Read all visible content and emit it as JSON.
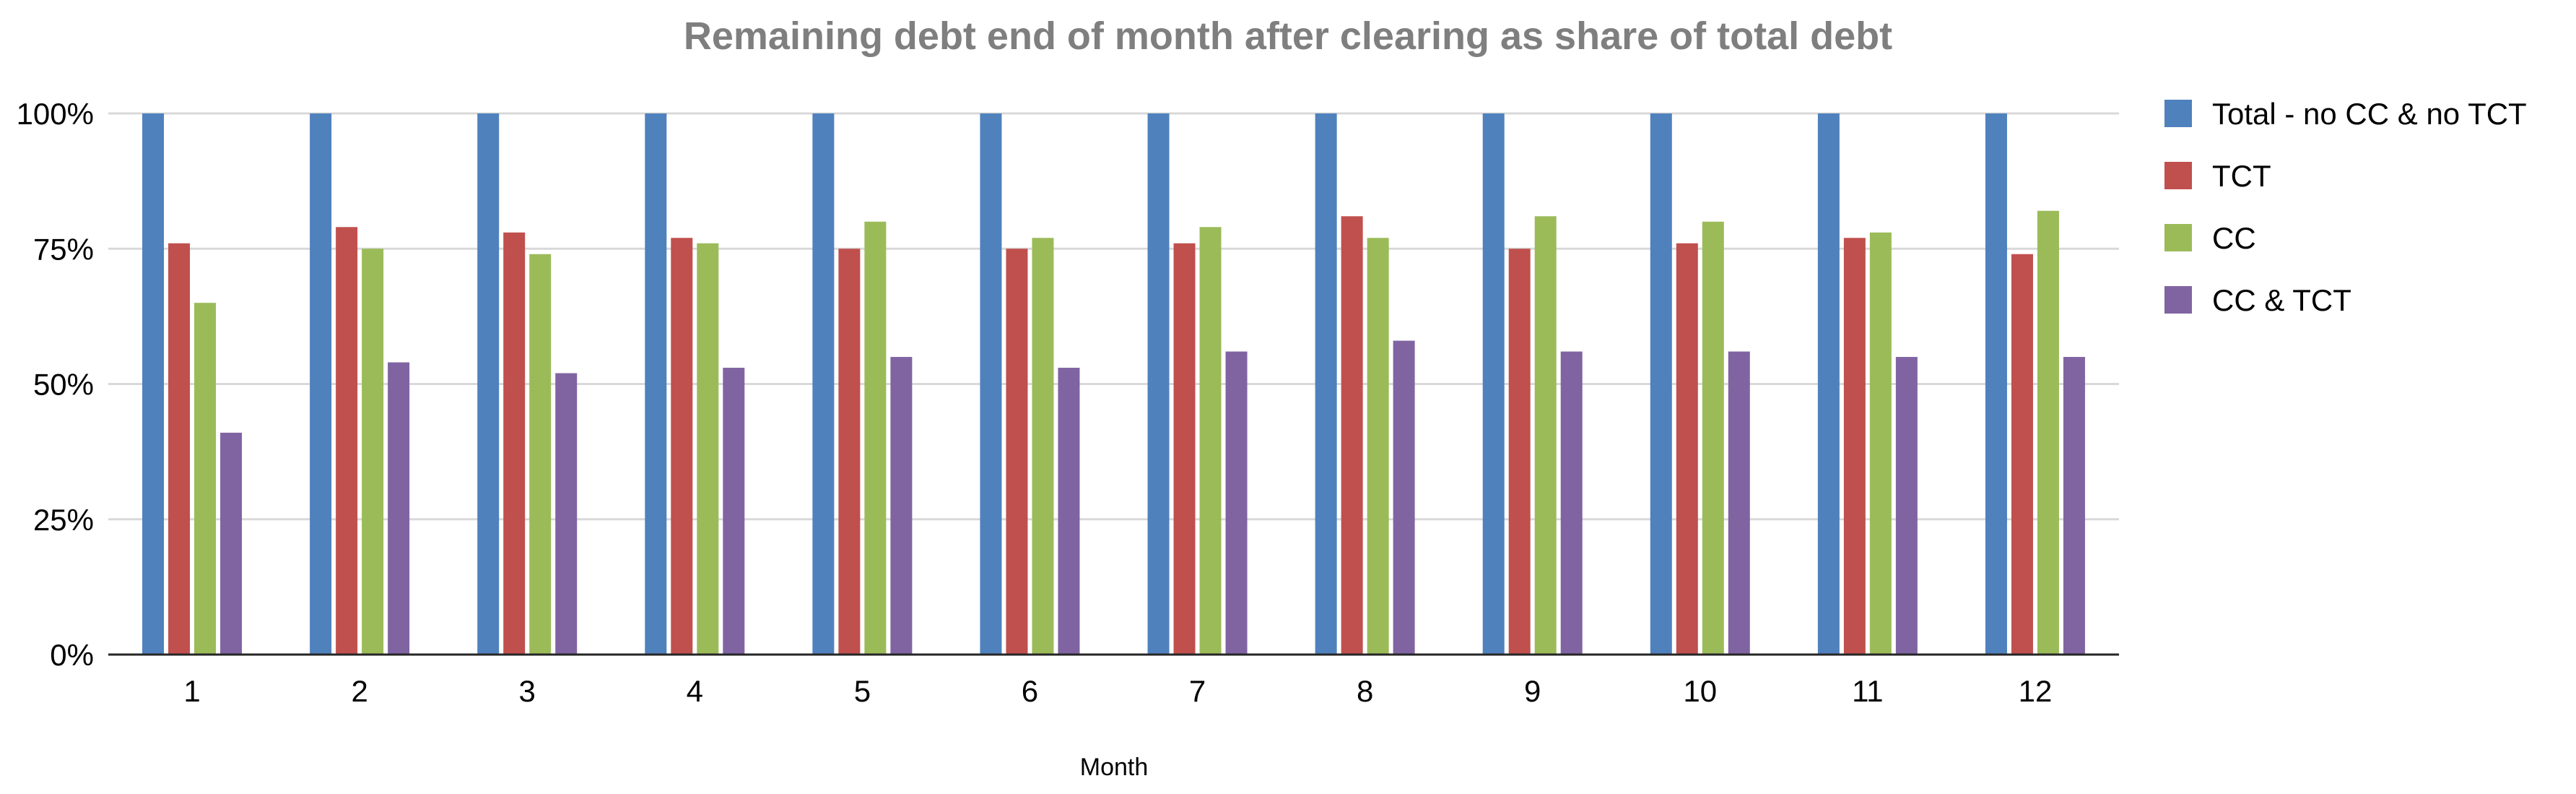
{
  "chart_data": {
    "type": "bar",
    "title": "Remaining debt end of month after clearing as share of total debt",
    "xlabel": "Month",
    "ylabel": "",
    "categories": [
      "1",
      "2",
      "3",
      "4",
      "5",
      "6",
      "7",
      "8",
      "9",
      "10",
      "11",
      "12"
    ],
    "yticks": [
      "0%",
      "25%",
      "50%",
      "75%",
      "100%"
    ],
    "ylim": [
      0,
      100
    ],
    "grid": true,
    "legend_position": "right",
    "series": [
      {
        "name": "Total - no CC & no TCT",
        "color": "#4f81bd",
        "values": [
          100,
          100,
          100,
          100,
          100,
          100,
          100,
          100,
          100,
          100,
          100,
          100
        ]
      },
      {
        "name": "TCT",
        "color": "#c0504d",
        "values": [
          76,
          79,
          78,
          77,
          75,
          75,
          76,
          81,
          75,
          76,
          77,
          74
        ]
      },
      {
        "name": "CC",
        "color": "#9bbb59",
        "values": [
          65,
          75,
          74,
          76,
          80,
          77,
          79,
          77,
          81,
          80,
          78,
          82
        ]
      },
      {
        "name": "CC & TCT",
        "color": "#8064a2",
        "values": [
          41,
          54,
          52,
          53,
          55,
          53,
          56,
          58,
          56,
          56,
          55,
          55
        ]
      }
    ]
  }
}
